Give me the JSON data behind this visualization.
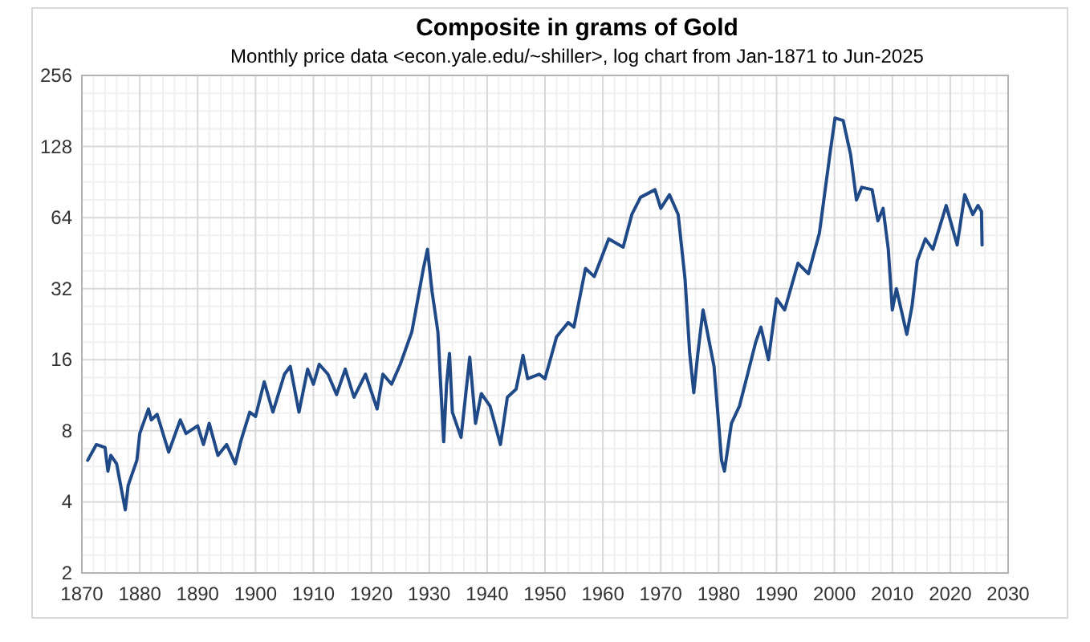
{
  "chart_data": {
    "type": "line",
    "title": "Composite in grams of Gold",
    "subtitle": "Monthly price data <econ.yale.edu/~shiller>, log chart from Jan-1871 to Jun-2025",
    "log": "y",
    "grid": true,
    "marker": "none",
    "line_style": "solid",
    "xlim": [
      1870,
      2030
    ],
    "xticks": [
      1870,
      1880,
      1890,
      1900,
      1910,
      1920,
      1930,
      1940,
      1950,
      1960,
      1970,
      1980,
      1990,
      2000,
      2010,
      2020,
      2030
    ],
    "ylim": [
      2,
      256
    ],
    "yticks": [
      2,
      4,
      8,
      16,
      32,
      64,
      128,
      256
    ],
    "series": [
      {
        "color": "#204a87",
        "x": [
          1871,
          1872.5,
          1874,
          1874.5,
          1875,
          1876,
          1877.5,
          1878,
          1879.5,
          1880,
          1881.5,
          1882,
          1883,
          1885,
          1887,
          1888,
          1890,
          1891,
          1892,
          1893.5,
          1895,
          1896.5,
          1897.5,
          1899,
          1900,
          1901.5,
          1903,
          1905,
          1906,
          1907.5,
          1909,
          1910,
          1911,
          1912.5,
          1914,
          1915.5,
          1917,
          1919,
          1921,
          1922,
          1923.5,
          1925,
          1927,
          1929,
          1929.7,
          1930.5,
          1931.5,
          1932.5,
          1933,
          1933.5,
          1934,
          1935.5,
          1937,
          1938,
          1939,
          1940.5,
          1942.3,
          1943.5,
          1945,
          1946.2,
          1947,
          1949,
          1950,
          1952,
          1954,
          1955,
          1957,
          1958.5,
          1961,
          1963.5,
          1965,
          1966.5,
          1969,
          1970,
          1971.5,
          1973,
          1974.2,
          1975,
          1975.7,
          1976.4,
          1977.3,
          1979.2,
          1980.5,
          1981,
          1982.2,
          1983.6,
          1985,
          1986.4,
          1987.3,
          1988.6,
          1990,
          1991.4,
          1993.7,
          1995.5,
          1997.4,
          1999.2,
          2000.1,
          2001.5,
          2002.8,
          2003.8,
          2004.7,
          2006.5,
          2007.5,
          2008.4,
          2009.3,
          2010,
          2010.7,
          2012.5,
          2013.4,
          2014.3,
          2015.7,
          2017,
          2019.3,
          2021.2,
          2022.5,
          2023.9,
          2024.8,
          2025.4,
          2025.5
        ],
        "values": [
          6.0,
          7.0,
          6.8,
          5.4,
          6.3,
          5.8,
          3.7,
          4.7,
          6.0,
          7.8,
          9.9,
          8.9,
          9.4,
          6.5,
          8.9,
          7.8,
          8.4,
          7.0,
          8.6,
          6.3,
          7.0,
          5.8,
          7.3,
          9.6,
          9.2,
          12.9,
          9.6,
          13.9,
          15.0,
          9.6,
          14.6,
          12.6,
          15.3,
          13.9,
          11.4,
          14.6,
          11.1,
          13.9,
          9.9,
          13.9,
          12.6,
          15.3,
          21,
          39,
          47,
          31,
          21,
          7.2,
          12.6,
          17,
          9.6,
          7.5,
          16.4,
          8.6,
          11.5,
          10.2,
          7.0,
          11.1,
          12.0,
          16.7,
          13.3,
          13.9,
          13.3,
          20,
          23,
          22,
          39,
          36,
          52,
          48,
          66,
          78,
          84,
          70,
          80,
          66,
          35,
          17,
          11.6,
          17,
          26,
          15,
          6.0,
          5.4,
          8.6,
          10.2,
          13.9,
          19,
          22,
          16,
          29,
          26,
          41,
          37,
          55,
          118,
          169,
          165,
          118,
          76,
          86,
          84,
          62,
          70,
          47,
          26,
          32,
          20.5,
          27,
          42,
          52,
          47,
          72,
          49,
          80,
          66,
          72,
          68,
          49
        ]
      }
    ]
  }
}
